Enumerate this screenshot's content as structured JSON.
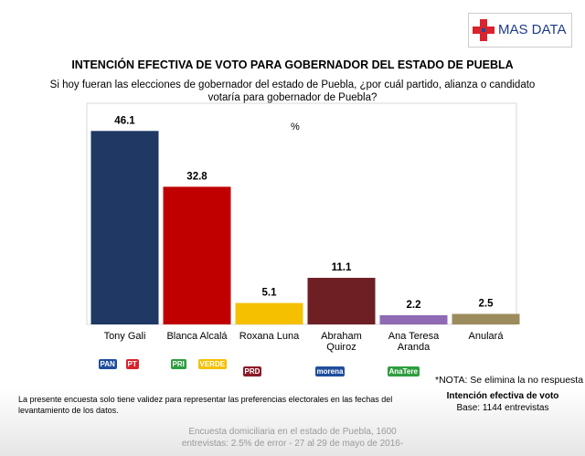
{
  "logo": "MAS DATA",
  "chart_data": {
    "type": "bar",
    "title": "INTENCIÓN EFECTIVA DE VOTO PARA GOBERNADOR DEL ESTADO DE PUEBLA",
    "subtitle": "Si hoy fueran las elecciones de gobernador del estado de Puebla, ¿por cuál partido, alianza o candidato\nvotaría para gobernador de Puebla?",
    "unit_label": "%",
    "categories": [
      "Tony Gali",
      "Blanca Alcalá",
      "Roxana Luna",
      "Abraham\nQuiroz",
      "Ana Teresa\nAranda",
      "Anulará"
    ],
    "values": [
      46.1,
      32.8,
      5.1,
      11.1,
      2.2,
      2.5
    ],
    "colors": [
      "#1f3864",
      "#c00000",
      "#f5c000",
      "#6e1f24",
      "#8e6bb4",
      "#9c8b5c"
    ],
    "ylim": [
      0,
      52.7
    ]
  },
  "party_logos": [
    [
      "PAN",
      "PT"
    ],
    [
      "PRI",
      "VERDE"
    ],
    [
      "PRD"
    ],
    [
      "morena"
    ],
    [
      "AnaTere"
    ],
    []
  ],
  "notes": {
    "nota": "*NOTA: Se elimina la no respuesta",
    "heading": "Intención efectiva de voto",
    "base": "Base: 1144 entrevistas",
    "validity": "La presente encuesta solo tiene validez para representar  las preferencias electorales en las fechas del\nlevantamiento de los datos."
  },
  "footer": "Encuesta domiciliaria en el estado de Puebla, 1600\nentrevistas: 2.5% de error - 27 al 29 de mayo de 2016-"
}
